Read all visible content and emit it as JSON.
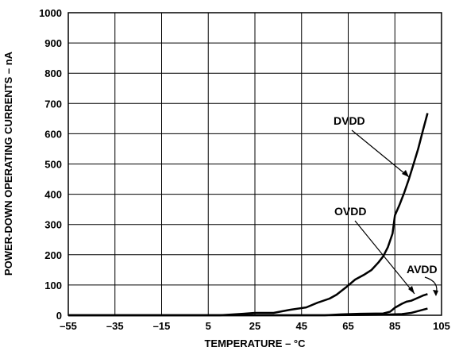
{
  "chart_data": {
    "type": "line",
    "title": "",
    "xlabel": "TEMPERATURE – °C",
    "ylabel": "POWER-DOWN OPERATING CURRENTS – nA",
    "xlim": [
      -55,
      105
    ],
    "ylim": [
      0,
      1000
    ],
    "x_ticks": [
      "–55",
      "–35",
      "–15",
      "5",
      "25",
      "45",
      "65",
      "85",
      "105"
    ],
    "y_ticks": [
      "0",
      "100",
      "200",
      "300",
      "400",
      "500",
      "600",
      "700",
      "800",
      "900",
      "1000"
    ],
    "grid": true,
    "legend": "none",
    "line_color": "#000000",
    "series": [
      {
        "name": "DVDD",
        "points": [
          [
            -55,
            0
          ],
          [
            0,
            0
          ],
          [
            10,
            0
          ],
          [
            20,
            5
          ],
          [
            25,
            8
          ],
          [
            33,
            8
          ],
          [
            40,
            18
          ],
          [
            47,
            26
          ],
          [
            52,
            42
          ],
          [
            57,
            55
          ],
          [
            60,
            68
          ],
          [
            64,
            92
          ],
          [
            68,
            118
          ],
          [
            72,
            135
          ],
          [
            75,
            150
          ],
          [
            78,
            175
          ],
          [
            80,
            195
          ],
          [
            82,
            225
          ],
          [
            84,
            270
          ],
          [
            85,
            330
          ],
          [
            87,
            365
          ],
          [
            89,
            405
          ],
          [
            91,
            450
          ],
          [
            93,
            500
          ],
          [
            95,
            550
          ],
          [
            97,
            610
          ],
          [
            99,
            668
          ]
        ]
      },
      {
        "name": "OVDD",
        "points": [
          [
            -55,
            0
          ],
          [
            55,
            0
          ],
          [
            62,
            3
          ],
          [
            70,
            5
          ],
          [
            80,
            6
          ],
          [
            83,
            12
          ],
          [
            85,
            25
          ],
          [
            88,
            38
          ],
          [
            90,
            45
          ],
          [
            92,
            48
          ],
          [
            95,
            58
          ],
          [
            97,
            65
          ],
          [
            99,
            70
          ]
        ]
      },
      {
        "name": "AVDD",
        "points": [
          [
            -55,
            0
          ],
          [
            55,
            0
          ],
          [
            70,
            1
          ],
          [
            80,
            2
          ],
          [
            88,
            4
          ],
          [
            92,
            8
          ],
          [
            95,
            14
          ],
          [
            97,
            18
          ],
          [
            99,
            22
          ]
        ]
      }
    ],
    "annotations": [
      {
        "text": "DVDD",
        "target_series": "DVDD"
      },
      {
        "text": "OVDD",
        "target_series": "OVDD"
      },
      {
        "text": "AVDD",
        "target_series": "AVDD"
      }
    ]
  }
}
